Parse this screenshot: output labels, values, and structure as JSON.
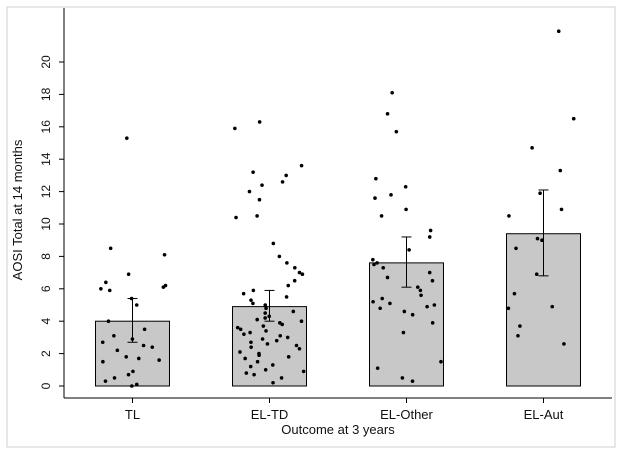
{
  "chart_data": {
    "type": "bar",
    "xlabel": "Outcome at 3 years",
    "ylabel": "AOSI Total at 14 months",
    "ylim": [
      0,
      22
    ],
    "yticks": [
      0,
      2,
      4,
      6,
      8,
      10,
      12,
      14,
      16,
      18,
      20
    ],
    "grid": false,
    "categories": [
      "TL",
      "EL-TD",
      "EL-Other",
      "EL-Aut"
    ],
    "means": [
      4.0,
      4.9,
      7.6,
      9.4
    ],
    "ci_low": [
      2.7,
      4.0,
      6.1,
      6.8
    ],
    "ci_high": [
      5.4,
      5.9,
      9.2,
      12.1
    ],
    "points": [
      [
        0.0,
        0.1,
        0.3,
        0.5,
        0.7,
        0.9,
        1.5,
        1.6,
        1.7,
        1.8,
        2.2,
        2.4,
        2.5,
        2.7,
        2.9,
        3.1,
        3.5,
        4.0,
        5.0,
        5.4,
        5.9,
        6.0,
        6.1,
        6.2,
        6.4,
        6.9,
        8.1,
        8.5,
        15.3
      ],
      [
        0.2,
        0.5,
        0.7,
        0.8,
        0.9,
        1.0,
        1.2,
        1.3,
        1.5,
        1.7,
        1.8,
        1.9,
        2.0,
        2.1,
        2.3,
        2.4,
        2.5,
        2.6,
        2.7,
        2.8,
        2.9,
        3.0,
        3.1,
        3.2,
        3.3,
        3.4,
        3.5,
        3.6,
        3.7,
        3.8,
        3.9,
        4.0,
        4.1,
        4.2,
        4.3,
        4.5,
        4.6,
        4.8,
        5.0,
        5.1,
        5.3,
        5.5,
        5.7,
        5.9,
        6.2,
        6.5,
        6.9,
        7.0,
        7.3,
        7.6,
        8.0,
        8.8,
        10.4,
        10.5,
        11.5,
        12.0,
        12.4,
        12.6,
        13.0,
        13.2,
        13.6,
        15.9,
        16.3
      ],
      [
        0.3,
        0.5,
        1.1,
        1.5,
        3.3,
        3.9,
        4.4,
        4.6,
        4.8,
        4.9,
        5.0,
        5.1,
        5.2,
        5.4,
        5.6,
        5.9,
        6.1,
        6.5,
        6.7,
        7.0,
        7.3,
        7.5,
        7.6,
        7.8,
        8.4,
        9.2,
        9.6,
        10.5,
        10.9,
        11.6,
        11.8,
        12.3,
        12.8,
        15.7,
        16.8,
        18.1
      ],
      [
        2.6,
        3.1,
        3.7,
        4.8,
        4.9,
        5.7,
        6.9,
        8.5,
        9.0,
        9.1,
        10.5,
        10.9,
        11.9,
        13.3,
        14.7,
        16.5,
        21.9
      ]
    ]
  }
}
